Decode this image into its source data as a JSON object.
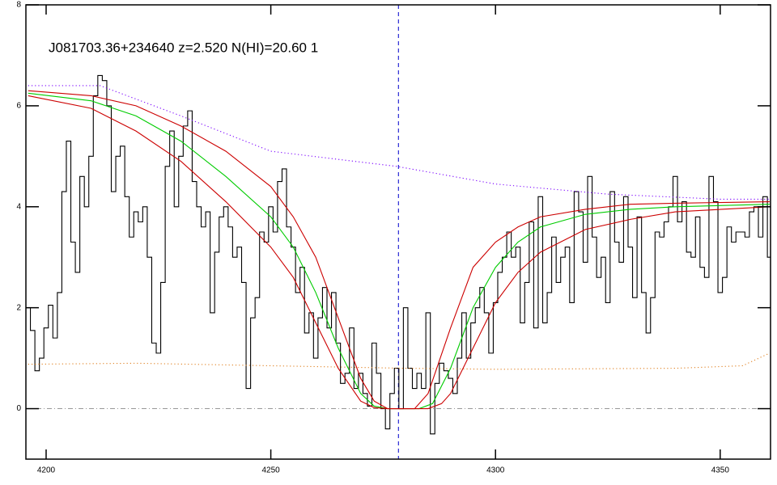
{
  "chart_data": {
    "type": "line",
    "title": "J081703.36+234640 z=2.520 N(HI)=20.60 1",
    "xlim": [
      4195.5,
      4361.2
    ],
    "ylim": [
      -1.0,
      8.0
    ],
    "xticks": [
      4200,
      4250,
      4300,
      4350
    ],
    "yticks": [
      0,
      2,
      4,
      6,
      8
    ],
    "vline": 4278.4,
    "vline_color": "#0000cc",
    "hline": 0,
    "hline_color": "#999999",
    "series": [
      {
        "color": "#000000",
        "style": "steps",
        "x": [
          4196,
          4197,
          4198,
          4199,
          4200,
          4201,
          4202,
          4203,
          4204,
          4205,
          4206,
          4207,
          4208,
          4209,
          4210,
          4211,
          4212,
          4213,
          4214,
          4215,
          4216,
          4217,
          4218,
          4219,
          4220,
          4221,
          4222,
          4223,
          4224,
          4225,
          4226,
          4227,
          4228,
          4229,
          4230,
          4231,
          4232,
          4233,
          4234,
          4235,
          4236,
          4237,
          4238,
          4239,
          4240,
          4241,
          4242,
          4243,
          4244,
          4245,
          4246,
          4247,
          4248,
          4249,
          4250,
          4251,
          4252,
          4253,
          4254,
          4255,
          4256,
          4257,
          4258,
          4259,
          4260,
          4261,
          4262,
          4263,
          4264,
          4265,
          4266,
          4267,
          4268,
          4269,
          4270,
          4271,
          4272,
          4273,
          4274,
          4275,
          4276,
          4277,
          4278,
          4279,
          4280,
          4281,
          4282,
          4283,
          4284,
          4285,
          4286,
          4287,
          4288,
          4289,
          4290,
          4291,
          4292,
          4293,
          4294,
          4295,
          4296,
          4297,
          4298,
          4299,
          4300,
          4301,
          4302,
          4303,
          4304,
          4305,
          4306,
          4307,
          4308,
          4309,
          4310,
          4311,
          4312,
          4313,
          4314,
          4315,
          4316,
          4317,
          4318,
          4319,
          4320,
          4321,
          4322,
          4323,
          4324,
          4325,
          4326,
          4327,
          4328,
          4329,
          4330,
          4331,
          4332,
          4333,
          4334,
          4335,
          4336,
          4337,
          4338,
          4339,
          4340,
          4341,
          4342,
          4343,
          4344,
          4345,
          4346,
          4347,
          4348,
          4349,
          4350,
          4351,
          4352,
          4353,
          4354,
          4355,
          4356,
          4357,
          4358,
          4359,
          4360,
          4361
        ],
        "values": [
          2.0,
          1.55,
          0.75,
          1.0,
          1.6,
          2.05,
          1.4,
          2.3,
          4.3,
          5.3,
          3.3,
          2.7,
          4.6,
          4.0,
          5.0,
          6.2,
          6.6,
          6.5,
          6.0,
          4.3,
          5.0,
          5.2,
          4.2,
          3.4,
          3.9,
          3.7,
          4.0,
          3.0,
          1.3,
          1.1,
          2.5,
          4.8,
          5.5,
          4.0,
          5.0,
          5.6,
          5.9,
          4.5,
          4.0,
          3.6,
          3.9,
          1.9,
          3.1,
          3.8,
          4.0,
          3.6,
          3.0,
          3.2,
          2.5,
          0.4,
          1.8,
          2.2,
          3.5,
          3.3,
          4.0,
          3.5,
          4.5,
          4.75,
          3.6,
          3.2,
          2.3,
          2.8,
          1.5,
          1.9,
          1.0,
          1.8,
          2.4,
          1.6,
          2.3,
          1.3,
          0.5,
          0.7,
          1.6,
          0.4,
          0.7,
          0.3,
          0.05,
          1.3,
          0.7,
          0.0,
          -0.4,
          0.3,
          0.8,
          0.0,
          2.0,
          0.8,
          0.4,
          0.7,
          0.4,
          1.9,
          -0.5,
          0.5,
          0.9,
          0.75,
          0.6,
          0.3,
          1.0,
          1.9,
          1.0,
          1.7,
          2.0,
          2.4,
          1.9,
          1.1,
          2.1,
          2.7,
          3.0,
          3.5,
          3.0,
          3.2,
          1.7,
          2.5,
          3.7,
          1.6,
          4.2,
          1.7,
          2.3,
          3.4,
          2.5,
          3.0,
          3.2,
          2.1,
          4.3,
          3.9,
          2.9,
          4.6,
          3.4,
          2.6,
          3.0,
          2.1,
          4.3,
          3.3,
          2.9,
          4.2,
          3.2,
          2.2,
          3.8,
          2.3,
          1.5,
          2.2,
          3.5,
          3.4,
          3.7,
          4.0,
          4.6,
          3.7,
          4.1,
          3.1,
          3.0,
          3.8,
          2.8,
          2.6,
          4.6,
          4.1,
          2.3,
          2.6,
          3.6,
          3.3,
          3.5,
          3.5,
          3.4,
          3.9,
          4.0,
          3.4,
          4.2,
          3.0
        ]
      },
      {
        "color": "#7a00ff",
        "style": "dotted",
        "x": [
          4196,
          4212,
          4230,
          4250,
          4278,
          4300,
          4325,
          4350,
          4361
        ],
        "values": [
          6.4,
          6.4,
          5.8,
          5.1,
          4.8,
          4.45,
          4.25,
          4.15,
          4.15
        ]
      },
      {
        "color": "#e08020",
        "style": "dotted",
        "x": [
          4196,
          4220,
          4250,
          4280,
          4300,
          4340,
          4355,
          4361
        ],
        "values": [
          0.88,
          0.9,
          0.85,
          0.8,
          0.78,
          0.8,
          0.85,
          1.1
        ]
      },
      {
        "color": "#00cc00",
        "style": "solid",
        "x": [
          4196,
          4210,
          4220,
          4230,
          4240,
          4250,
          4255,
          4260,
          4265,
          4270,
          4273,
          4276,
          4283,
          4286,
          4290,
          4295,
          4300,
          4305,
          4310,
          4320,
          4330,
          4340,
          4361
        ],
        "values": [
          6.25,
          6.1,
          5.8,
          5.3,
          4.6,
          3.8,
          3.2,
          2.3,
          1.2,
          0.3,
          0.05,
          0,
          0,
          0.1,
          0.8,
          2.0,
          2.8,
          3.3,
          3.6,
          3.85,
          3.95,
          4.0,
          4.05
        ]
      },
      {
        "color": "#cc0000",
        "style": "solid",
        "x": [
          4196,
          4210,
          4220,
          4230,
          4240,
          4250,
          4255,
          4260,
          4265,
          4270,
          4273,
          4276,
          4282,
          4285,
          4290,
          4295,
          4300,
          4305,
          4310,
          4320,
          4330,
          4340,
          4361
        ],
        "values": [
          6.3,
          6.2,
          6.0,
          5.6,
          5.1,
          4.4,
          3.8,
          3.0,
          1.8,
          0.6,
          0.15,
          0,
          0,
          0.3,
          1.6,
          2.8,
          3.3,
          3.6,
          3.8,
          3.95,
          4.05,
          4.07,
          4.1
        ]
      },
      {
        "color": "#cc0000",
        "style": "solid",
        "x": [
          4196,
          4210,
          4220,
          4230,
          4240,
          4250,
          4255,
          4260,
          4265,
          4270,
          4273,
          4276,
          4285,
          4288,
          4290,
          4295,
          4300,
          4305,
          4310,
          4320,
          4330,
          4340,
          4361
        ],
        "values": [
          6.2,
          5.95,
          5.5,
          4.9,
          4.1,
          3.2,
          2.6,
          1.7,
          0.8,
          0.15,
          0.02,
          0,
          0,
          0.1,
          0.3,
          1.2,
          2.1,
          2.7,
          3.1,
          3.55,
          3.75,
          3.9,
          4.0
        ]
      }
    ]
  }
}
